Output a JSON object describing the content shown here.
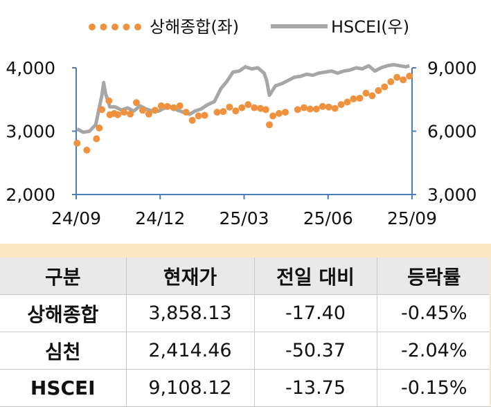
{
  "chart_data": {
    "type": "line",
    "legend": {
      "position": "top",
      "items": [
        {
          "label": "상해종합(좌)",
          "style": "dotted",
          "color": "#F0913E",
          "axis": "left"
        },
        {
          "label": "HSCEI(우)",
          "style": "solid",
          "color": "#A6A6A6",
          "axis": "right"
        }
      ]
    },
    "x_ticks": [
      "24/09",
      "24/12",
      "25/03",
      "25/06",
      "25/09"
    ],
    "y_left": {
      "ticks": [
        "2,000",
        "3,000",
        "4,000"
      ],
      "range": [
        2000,
        4000
      ]
    },
    "y_right": {
      "ticks": [
        "3,000",
        "6,000",
        "9,000"
      ],
      "range": [
        3000,
        9000
      ]
    },
    "grid": false,
    "series": [
      {
        "name": "상해종합(좌)",
        "axis": "left",
        "color": "#F0913E",
        "x": [
          "2024-09-02",
          "2024-09-13",
          "2024-09-24",
          "2024-09-27",
          "2024-09-30",
          "2024-10-08",
          "2024-10-09",
          "2024-10-14",
          "2024-10-18",
          "2024-10-25",
          "2024-11-01",
          "2024-11-08",
          "2024-11-15",
          "2024-11-22",
          "2024-11-29",
          "2024-12-06",
          "2024-12-13",
          "2024-12-20",
          "2024-12-27",
          "2025-01-03",
          "2025-01-10",
          "2025-01-17",
          "2025-01-24",
          "2025-02-07",
          "2025-02-14",
          "2025-02-21",
          "2025-02-28",
          "2025-03-07",
          "2025-03-14",
          "2025-03-21",
          "2025-03-28",
          "2025-04-03",
          "2025-04-07",
          "2025-04-11",
          "2025-04-18",
          "2025-04-25",
          "2025-05-09",
          "2025-05-16",
          "2025-05-23",
          "2025-05-30",
          "2025-06-06",
          "2025-06-13",
          "2025-06-20",
          "2025-06-27",
          "2025-07-04",
          "2025-07-11",
          "2025-07-18",
          "2025-07-25",
          "2025-08-01",
          "2025-08-08",
          "2025-08-15",
          "2025-08-22",
          "2025-08-29",
          "2025-09-05",
          "2025-09-12"
        ],
        "y": [
          2810,
          2700,
          2880,
          3050,
          3340,
          3480,
          3260,
          3280,
          3260,
          3300,
          3270,
          3450,
          3330,
          3270,
          3330,
          3400,
          3390,
          3370,
          3400,
          3300,
          3170,
          3240,
          3250,
          3300,
          3310,
          3380,
          3320,
          3370,
          3420,
          3370,
          3360,
          3340,
          3100,
          3240,
          3280,
          3300,
          3340,
          3370,
          3350,
          3350,
          3390,
          3380,
          3360,
          3420,
          3460,
          3510,
          3520,
          3600,
          3560,
          3640,
          3700,
          3780,
          3850,
          3810,
          3870
        ]
      },
      {
        "name": "HSCEI(우)",
        "axis": "right",
        "color": "#A6A6A6",
        "x": [
          "2024-09-02",
          "2024-09-09",
          "2024-09-16",
          "2024-09-23",
          "2024-09-26",
          "2024-09-30",
          "2024-10-02",
          "2024-10-04",
          "2024-10-08",
          "2024-10-09",
          "2024-10-15",
          "2024-10-22",
          "2024-10-29",
          "2024-11-05",
          "2024-11-12",
          "2024-11-19",
          "2024-11-26",
          "2024-12-03",
          "2024-12-10",
          "2024-12-17",
          "2024-12-24",
          "2024-12-31",
          "2025-01-07",
          "2025-01-13",
          "2025-01-20",
          "2025-01-27",
          "2025-02-04",
          "2025-02-11",
          "2025-02-18",
          "2025-02-25",
          "2025-03-04",
          "2025-03-11",
          "2025-03-18",
          "2025-03-25",
          "2025-04-01",
          "2025-04-04",
          "2025-04-07",
          "2025-04-14",
          "2025-04-21",
          "2025-04-28",
          "2025-05-05",
          "2025-05-12",
          "2025-05-19",
          "2025-05-26",
          "2025-06-02",
          "2025-06-09",
          "2025-06-16",
          "2025-06-23",
          "2025-06-30",
          "2025-07-07",
          "2025-07-14",
          "2025-07-21",
          "2025-07-28",
          "2025-08-04",
          "2025-08-11",
          "2025-08-18",
          "2025-08-25",
          "2025-09-01",
          "2025-09-08",
          "2025-09-12"
        ],
        "y": [
          6100,
          5950,
          6000,
          6300,
          6900,
          7700,
          8300,
          7800,
          7300,
          7150,
          7150,
          7000,
          7100,
          6950,
          7200,
          7050,
          6950,
          6950,
          7100,
          7150,
          7000,
          6900,
          6800,
          6950,
          7050,
          7250,
          7400,
          8000,
          8350,
          8800,
          8850,
          9050,
          8950,
          9000,
          8750,
          8400,
          7700,
          8150,
          8250,
          8400,
          8550,
          8600,
          8700,
          8650,
          8750,
          8800,
          8850,
          8750,
          8850,
          8900,
          9000,
          8950,
          9100,
          8850,
          9000,
          9100,
          9150,
          9100,
          9050,
          9100
        ]
      }
    ]
  },
  "table": {
    "headers": [
      "구분",
      "현재가",
      "전일 대비",
      "등락률"
    ],
    "rows": [
      {
        "name": "상해종합",
        "price": "3,858.13",
        "change": "-17.40",
        "rate": "-0.45%"
      },
      {
        "name": "심천",
        "price": "2,414.46",
        "change": "-50.37",
        "rate": "-2.04%"
      },
      {
        "name": "HSCEI",
        "price": "9,108.12",
        "change": "-13.75",
        "rate": "-0.15%"
      }
    ]
  },
  "colors": {
    "axis": "#4A7EBB",
    "header_bg": "#E9E9E9",
    "strip": "#FBE7C2"
  }
}
